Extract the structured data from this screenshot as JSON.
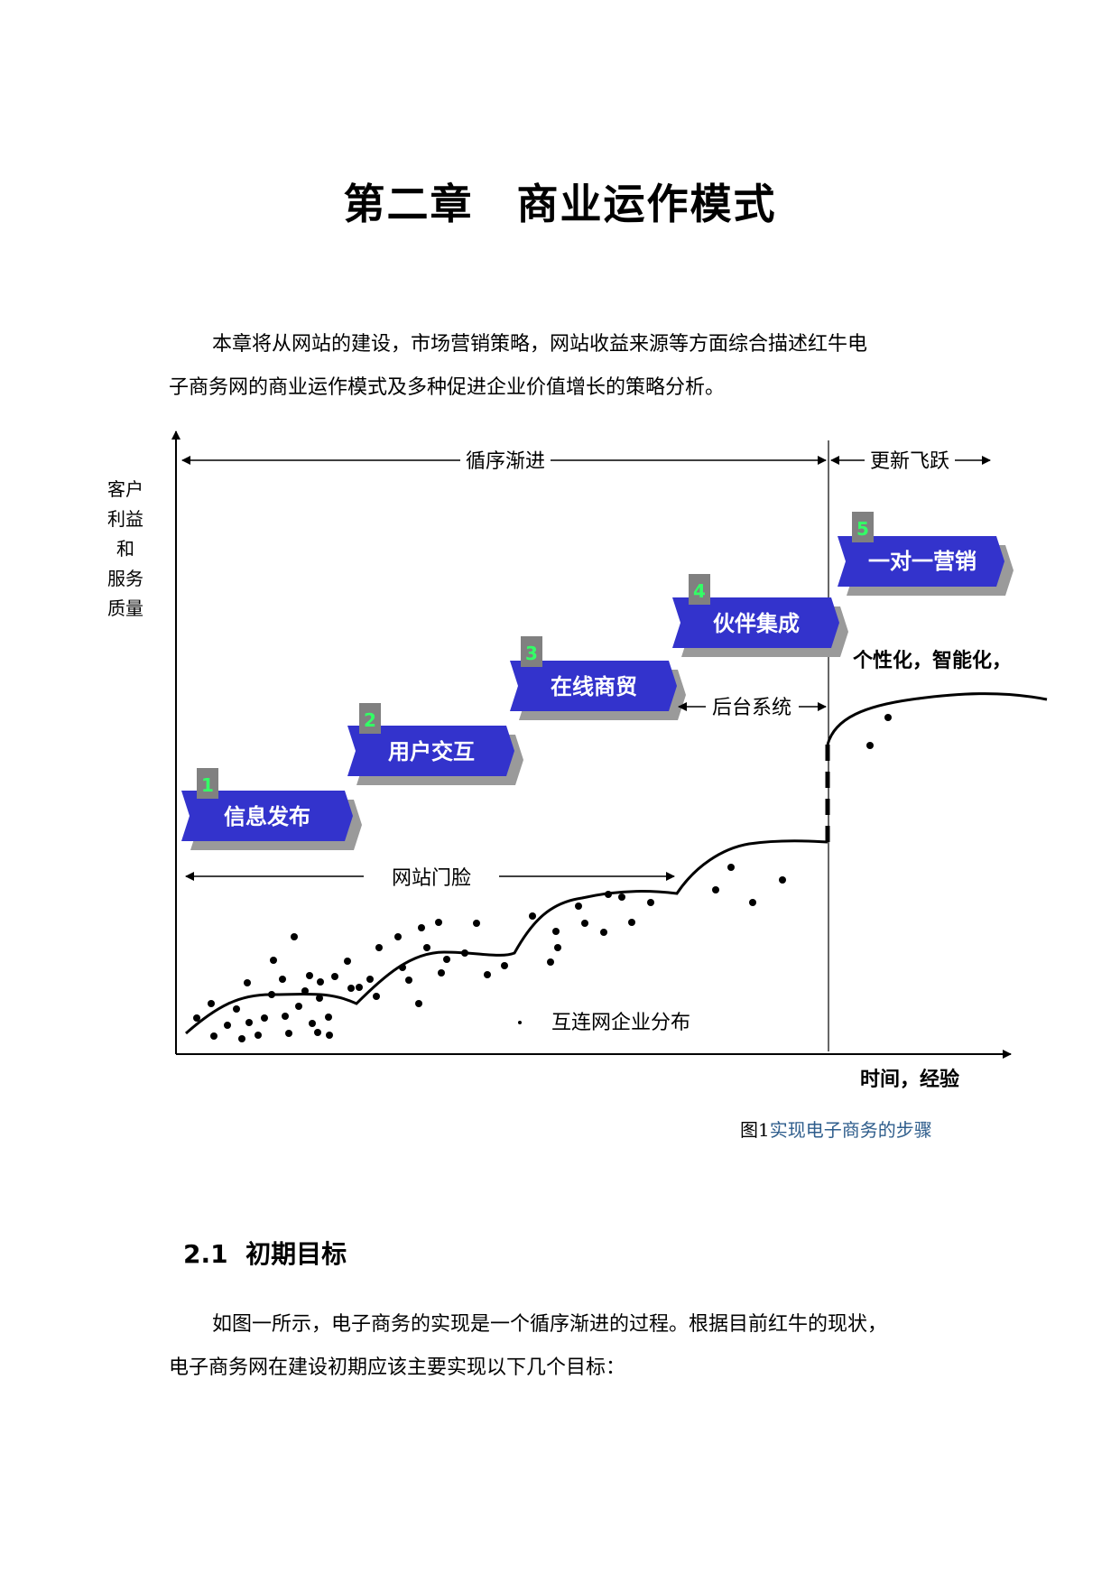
{
  "chapter_title": "第二章　商业运作模式",
  "intro_paragraph": {
    "line1": "本章将从网站的建设，市场营销策略，网站收益来源等方面综合描述红牛电",
    "line2": "子商务网的商业运作模式及多种促进企业价值增长的策略分析。"
  },
  "diagram": {
    "y_axis_label": [
      "客户",
      "利益",
      "和",
      "服务",
      "质量"
    ],
    "x_axis_label": "时间，经验",
    "phase_gradual": "循序渐进",
    "phase_leap": "更新飞跃",
    "backend_label": "后台系统",
    "website_threshold_label": "网站门脸",
    "personalization_label": "个性化，智能化，",
    "legend_dot": "·",
    "legend_label": "互连网企业分布",
    "steps": [
      {
        "number": "1",
        "label": "信息发布"
      },
      {
        "number": "2",
        "label": "用户交互"
      },
      {
        "number": "3",
        "label": "在线商贸"
      },
      {
        "number": "4",
        "label": "伙伴集成"
      },
      {
        "number": "5",
        "label": "一对一营销"
      }
    ],
    "colors": {
      "arrow_fill": "#3333cc",
      "arrow_shadow": "#9a9a9a",
      "number_box": "#808080",
      "number_text": "#33ff66"
    }
  },
  "caption": {
    "prefix": "图1",
    "text": "实现电子商务的步骤"
  },
  "section": {
    "number": "2.1",
    "title": "初期目标"
  },
  "section_paragraph": {
    "line1": "如图一所示，电子商务的实现是一个循序渐进的过程。根据目前红牛的现状，",
    "line2": "电子商务网在建设初期应该主要实现以下几个目标："
  }
}
